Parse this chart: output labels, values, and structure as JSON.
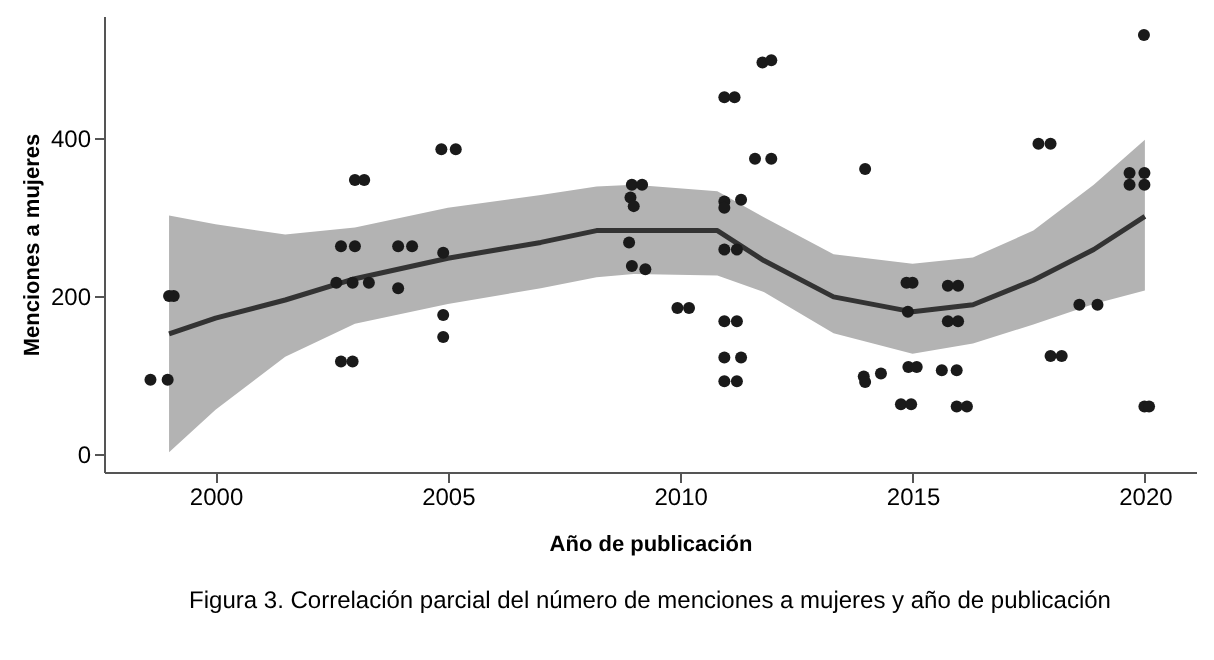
{
  "chart_data": {
    "type": "scatter",
    "xlabel": "Año de publicación",
    "ylabel": "Menciones a mujeres",
    "annotations": [
      "Figura 3. Correlación parcial del número de menciones a mujeres y año de publicación"
    ],
    "xlim": [
      1997.6,
      2021.1
    ],
    "xticks": [
      2000,
      2005,
      2010,
      2015,
      2020
    ],
    "ylim": [
      -23,
      555
    ],
    "yticks": [
      0,
      200,
      400
    ],
    "series": [
      {
        "type": "line",
        "color": "#333333",
        "line_style": "solid",
        "x": [
          1999,
          2000,
          2001.5,
          2003,
          2005,
          2007,
          2008.2,
          2009,
          2010.8,
          2011.8,
          2013.3,
          2015,
          2016.3,
          2017.6,
          2018.9,
          2020
        ],
        "values": [
          152,
          172,
          195,
          222,
          248,
          268,
          283,
          283,
          283,
          245,
          199,
          180,
          189,
          220,
          259,
          301
        ],
        "lower": [
          2,
          56,
          123,
          165,
          190,
          210,
          224,
          228,
          226,
          205,
          153,
          127,
          140,
          164,
          190,
          207
        ],
        "upper": [
          302,
          291,
          278,
          287,
          312,
          328,
          339,
          341,
          333,
          300,
          253,
          241,
          249,
          283,
          341,
          398
        ]
      },
      {
        "color": "#1a1a1a",
        "marker": "circle",
        "x": [
          1998.6,
          1998.97,
          1999.0,
          1999.1,
          2002.7,
          2003.0,
          2003.0,
          2003.2,
          2002.6,
          2002.95,
          2003.3,
          2002.7,
          2002.95,
          2003.93,
          2004.23,
          2003.93,
          2004.9,
          2004.86,
          2005.17,
          2004.9,
          2004.9,
          2008.96,
          2009.18,
          2008.93,
          2009.0,
          2008.9,
          2008.96,
          2009.25,
          2009.94,
          2010.19,
          2010.95,
          2011.17,
          2010.95,
          2011.31,
          2010.95,
          2010.95,
          2011.22,
          2010.95,
          2011.22,
          2010.95,
          2011.31,
          2010.95,
          2011.22,
          2011.77,
          2011.96,
          2011.61,
          2011.96,
          2013.98,
          2013.95,
          2013.98,
          2014.32,
          2014.87,
          2015.0,
          2014.9,
          2014.91,
          2015.09,
          2014.75,
          2014.97,
          2015.63,
          2015.95,
          2015.76,
          2015.98,
          2015.76,
          2015.98,
          2015.95,
          2016.17,
          2017.71,
          2017.97,
          2017.97,
          2018.21,
          2018.59,
          2018.98,
          2019.67,
          2019.99,
          2019.67,
          2019.99,
          2019.98,
          2019.99,
          2020.09
        ],
        "values": [
          94,
          94,
          200,
          200,
          263,
          263,
          347,
          347,
          217,
          217,
          217,
          117,
          117,
          263,
          263,
          210,
          255,
          386,
          386,
          176,
          148,
          341,
          341,
          325,
          314,
          268,
          238,
          234,
          185,
          185,
          452,
          452,
          320,
          322,
          312,
          259,
          259,
          168,
          168,
          122,
          122,
          92,
          92,
          496,
          499,
          374,
          374,
          361,
          98,
          91,
          102,
          217,
          217,
          180,
          110,
          110,
          63,
          63,
          106,
          106,
          213,
          213,
          168,
          168,
          60,
          60,
          393,
          393,
          124,
          124,
          189,
          189,
          356,
          356,
          341,
          341,
          531,
          60,
          60
        ]
      }
    ]
  }
}
